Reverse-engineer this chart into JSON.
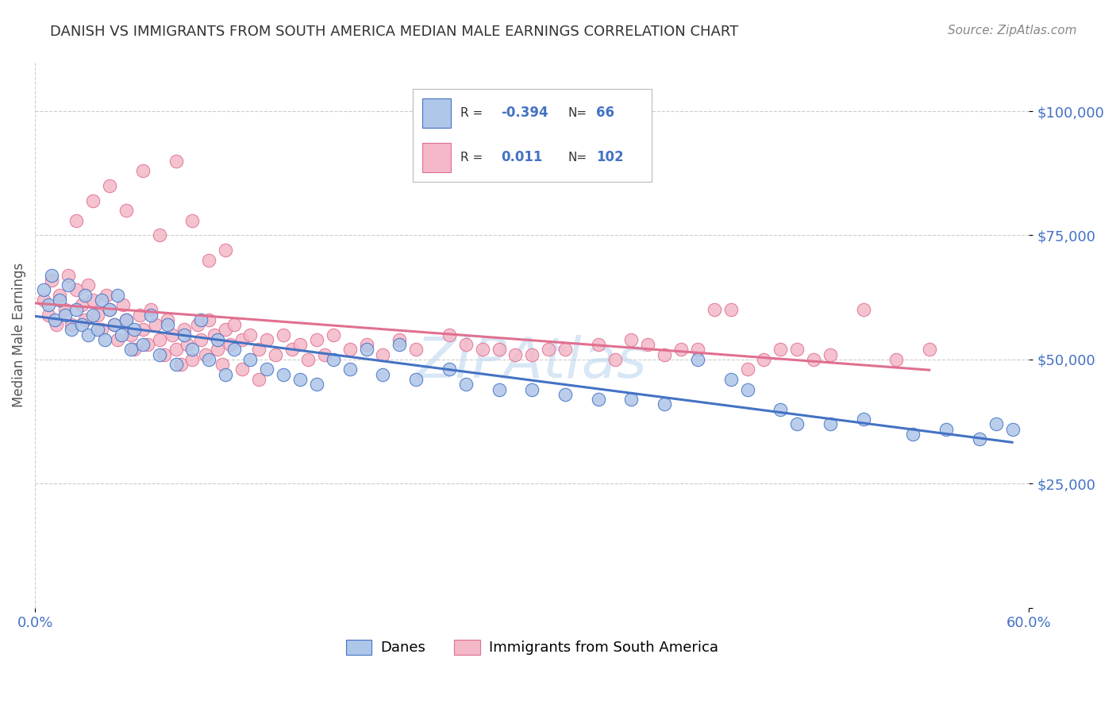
{
  "title": "DANISH VS IMMIGRANTS FROM SOUTH AMERICA MEDIAN MALE EARNINGS CORRELATION CHART",
  "source": "Source: ZipAtlas.com",
  "ylabel": "Median Male Earnings",
  "xlim": [
    0.0,
    0.6
  ],
  "ylim": [
    0,
    110000
  ],
  "yticks": [
    0,
    25000,
    50000,
    75000,
    100000
  ],
  "ytick_labels": [
    "",
    "$25,000",
    "$50,000",
    "$75,000",
    "$100,000"
  ],
  "series1_label": "Danes",
  "series1_color": "#aec6e8",
  "series1_line_color": "#4472c4",
  "series1_R": "-0.394",
  "series1_N": "66",
  "series2_label": "Immigrants from South America",
  "series2_color": "#f4b8c8",
  "series2_line_color": "#e07090",
  "series2_R": "0.011",
  "series2_N": "102",
  "watermark": "ZIPAtlas",
  "blue_label_color": "#4472c4",
  "grid_color": "#cccccc",
  "background_color": "#ffffff",
  "danes_x": [
    0.005,
    0.008,
    0.01,
    0.012,
    0.015,
    0.018,
    0.02,
    0.022,
    0.025,
    0.028,
    0.03,
    0.032,
    0.035,
    0.038,
    0.04,
    0.042,
    0.045,
    0.048,
    0.05,
    0.052,
    0.055,
    0.058,
    0.06,
    0.065,
    0.07,
    0.075,
    0.08,
    0.085,
    0.09,
    0.095,
    0.1,
    0.105,
    0.11,
    0.115,
    0.12,
    0.13,
    0.14,
    0.15,
    0.16,
    0.17,
    0.18,
    0.19,
    0.2,
    0.21,
    0.22,
    0.23,
    0.25,
    0.26,
    0.28,
    0.3,
    0.32,
    0.34,
    0.36,
    0.38,
    0.4,
    0.42,
    0.45,
    0.48,
    0.5,
    0.53,
    0.55,
    0.57,
    0.58,
    0.59,
    0.43,
    0.46
  ],
  "danes_y": [
    64000,
    61000,
    67000,
    58000,
    62000,
    59000,
    65000,
    56000,
    60000,
    57000,
    63000,
    55000,
    59000,
    56000,
    62000,
    54000,
    60000,
    57000,
    63000,
    55000,
    58000,
    52000,
    56000,
    53000,
    59000,
    51000,
    57000,
    49000,
    55000,
    52000,
    58000,
    50000,
    54000,
    47000,
    52000,
    50000,
    48000,
    47000,
    46000,
    45000,
    50000,
    48000,
    52000,
    47000,
    53000,
    46000,
    48000,
    45000,
    44000,
    44000,
    43000,
    42000,
    42000,
    41000,
    50000,
    46000,
    40000,
    37000,
    38000,
    35000,
    36000,
    34000,
    37000,
    36000,
    44000,
    37000
  ],
  "sa_x": [
    0.005,
    0.008,
    0.01,
    0.013,
    0.015,
    0.018,
    0.02,
    0.022,
    0.025,
    0.028,
    0.03,
    0.032,
    0.035,
    0.038,
    0.04,
    0.043,
    0.045,
    0.048,
    0.05,
    0.053,
    0.055,
    0.058,
    0.06,
    0.063,
    0.065,
    0.068,
    0.07,
    0.073,
    0.075,
    0.078,
    0.08,
    0.083,
    0.085,
    0.088,
    0.09,
    0.092,
    0.095,
    0.098,
    0.1,
    0.103,
    0.105,
    0.108,
    0.11,
    0.113,
    0.115,
    0.118,
    0.12,
    0.125,
    0.13,
    0.135,
    0.14,
    0.145,
    0.15,
    0.155,
    0.16,
    0.165,
    0.17,
    0.175,
    0.18,
    0.19,
    0.2,
    0.21,
    0.22,
    0.23,
    0.25,
    0.26,
    0.28,
    0.3,
    0.32,
    0.34,
    0.36,
    0.38,
    0.4,
    0.42,
    0.44,
    0.46,
    0.48,
    0.5,
    0.52,
    0.54,
    0.27,
    0.29,
    0.31,
    0.35,
    0.37,
    0.39,
    0.41,
    0.43,
    0.45,
    0.47,
    0.025,
    0.035,
    0.045,
    0.055,
    0.065,
    0.075,
    0.085,
    0.095,
    0.105,
    0.115,
    0.125,
    0.135
  ],
  "sa_y": [
    62000,
    59000,
    66000,
    57000,
    63000,
    60000,
    67000,
    57000,
    64000,
    61000,
    58000,
    65000,
    62000,
    59000,
    56000,
    63000,
    60000,
    57000,
    54000,
    61000,
    58000,
    55000,
    52000,
    59000,
    56000,
    53000,
    60000,
    57000,
    54000,
    51000,
    58000,
    55000,
    52000,
    49000,
    56000,
    53000,
    50000,
    57000,
    54000,
    51000,
    58000,
    55000,
    52000,
    49000,
    56000,
    53000,
    57000,
    54000,
    55000,
    52000,
    54000,
    51000,
    55000,
    52000,
    53000,
    50000,
    54000,
    51000,
    55000,
    52000,
    53000,
    51000,
    54000,
    52000,
    55000,
    53000,
    52000,
    51000,
    52000,
    53000,
    54000,
    51000,
    52000,
    60000,
    50000,
    52000,
    51000,
    60000,
    50000,
    52000,
    52000,
    51000,
    52000,
    50000,
    53000,
    52000,
    60000,
    48000,
    52000,
    50000,
    78000,
    82000,
    85000,
    80000,
    88000,
    75000,
    90000,
    78000,
    70000,
    72000,
    48000,
    46000
  ]
}
